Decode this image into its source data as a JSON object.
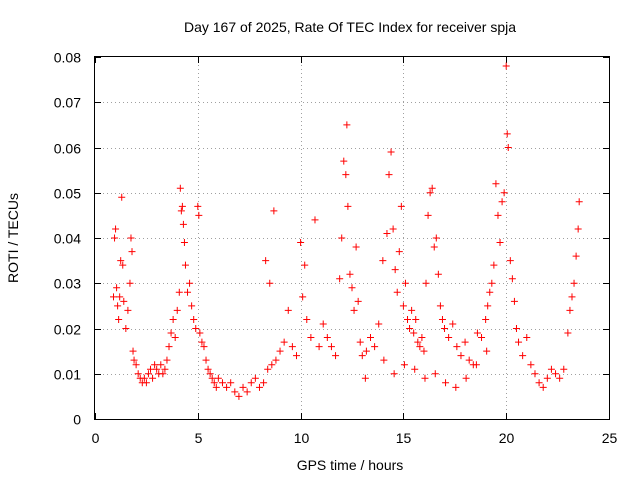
{
  "chart_data": {
    "type": "scatter",
    "title": "Day 167 of 2025, Rate Of TEC Index for receiver spja",
    "xlabel": "GPS time / hours",
    "ylabel": "ROTI / TECUs",
    "xlim": [
      0,
      25
    ],
    "ylim": [
      0,
      0.08
    ],
    "grid": true,
    "marker": "+",
    "color": "#ff0000",
    "x_ticks": [
      0,
      5,
      10,
      15,
      20,
      25
    ],
    "x_tick_labels": [
      "0",
      "5",
      "10",
      "15",
      "20",
      "25"
    ],
    "y_ticks": [
      0,
      0.01,
      0.02,
      0.03,
      0.04,
      0.05,
      0.06,
      0.07,
      0.08
    ],
    "y_tick_labels": [
      "0",
      "0.01",
      "0.02",
      "0.03",
      "0.04",
      "0.05",
      "0.06",
      "0.07",
      "0.08"
    ],
    "series": [
      {
        "name": "ROTI",
        "x": [
          0.9,
          0.95,
          1.0,
          1.05,
          1.1,
          1.15,
          1.2,
          1.25,
          1.3,
          1.35,
          1.4,
          1.5,
          1.6,
          1.7,
          1.75,
          1.8,
          1.85,
          1.9,
          2.0,
          2.1,
          2.2,
          2.3,
          2.4,
          2.5,
          2.6,
          2.7,
          2.8,
          2.9,
          3.0,
          3.1,
          3.2,
          3.3,
          3.4,
          3.5,
          3.6,
          3.7,
          3.8,
          3.9,
          4.0,
          4.1,
          4.15,
          4.2,
          4.25,
          4.3,
          4.35,
          4.4,
          4.5,
          4.6,
          4.7,
          4.8,
          4.9,
          5.0,
          5.05,
          5.1,
          5.2,
          5.3,
          5.4,
          5.5,
          5.6,
          5.7,
          5.8,
          5.9,
          6.0,
          6.2,
          6.4,
          6.6,
          6.8,
          7.0,
          7.2,
          7.4,
          7.6,
          7.8,
          8.0,
          8.2,
          8.3,
          8.4,
          8.5,
          8.6,
          8.7,
          8.8,
          9.0,
          9.2,
          9.4,
          9.6,
          9.8,
          10.0,
          10.1,
          10.2,
          10.3,
          10.5,
          10.7,
          10.9,
          11.1,
          11.3,
          11.5,
          11.7,
          11.9,
          12.0,
          12.1,
          12.2,
          12.25,
          12.3,
          12.4,
          12.5,
          12.6,
          12.7,
          12.8,
          12.9,
          13.0,
          13.2,
          13.4,
          13.6,
          13.8,
          14.0,
          14.2,
          14.3,
          14.4,
          14.5,
          14.6,
          14.7,
          14.8,
          14.9,
          15.0,
          15.1,
          15.2,
          15.3,
          15.4,
          15.5,
          15.6,
          15.7,
          15.8,
          15.9,
          16.0,
          16.1,
          16.2,
          16.3,
          16.4,
          16.5,
          16.6,
          16.7,
          16.8,
          16.9,
          17.0,
          17.2,
          17.4,
          17.6,
          17.8,
          18.0,
          18.2,
          18.4,
          18.6,
          18.8,
          19.0,
          19.1,
          19.2,
          19.3,
          19.4,
          19.5,
          19.6,
          19.7,
          19.8,
          19.9,
          20.0,
          20.05,
          20.1,
          20.2,
          20.3,
          20.4,
          20.5,
          20.6,
          20.8,
          21.0,
          21.2,
          21.4,
          21.6,
          21.8,
          22.0,
          22.2,
          22.4,
          22.6,
          22.8,
          23.0,
          23.1,
          23.2,
          23.3,
          23.4,
          23.5,
          23.55,
          14.55,
          15.05,
          13.15,
          15.55,
          16.05,
          16.55,
          17.05,
          17.55,
          18.05,
          18.55,
          19.05,
          14.05
        ],
        "y": [
          0.027,
          0.04,
          0.042,
          0.029,
          0.025,
          0.022,
          0.027,
          0.035,
          0.049,
          0.034,
          0.026,
          0.02,
          0.024,
          0.03,
          0.04,
          0.037,
          0.015,
          0.013,
          0.012,
          0.01,
          0.009,
          0.008,
          0.009,
          0.008,
          0.01,
          0.011,
          0.009,
          0.012,
          0.011,
          0.01,
          0.012,
          0.01,
          0.011,
          0.013,
          0.016,
          0.019,
          0.022,
          0.018,
          0.024,
          0.028,
          0.051,
          0.046,
          0.047,
          0.043,
          0.039,
          0.034,
          0.028,
          0.03,
          0.025,
          0.022,
          0.02,
          0.047,
          0.045,
          0.019,
          0.017,
          0.016,
          0.013,
          0.011,
          0.01,
          0.009,
          0.008,
          0.007,
          0.009,
          0.008,
          0.007,
          0.008,
          0.006,
          0.005,
          0.007,
          0.006,
          0.008,
          0.009,
          0.007,
          0.008,
          0.035,
          0.011,
          0.03,
          0.012,
          0.046,
          0.013,
          0.015,
          0.017,
          0.024,
          0.016,
          0.014,
          0.039,
          0.027,
          0.034,
          0.022,
          0.018,
          0.044,
          0.016,
          0.021,
          0.018,
          0.016,
          0.014,
          0.031,
          0.04,
          0.057,
          0.054,
          0.065,
          0.047,
          0.032,
          0.029,
          0.024,
          0.038,
          0.026,
          0.017,
          0.014,
          0.015,
          0.018,
          0.016,
          0.021,
          0.035,
          0.041,
          0.054,
          0.059,
          0.042,
          0.033,
          0.028,
          0.037,
          0.047,
          0.025,
          0.03,
          0.022,
          0.02,
          0.024,
          0.019,
          0.022,
          0.017,
          0.016,
          0.018,
          0.015,
          0.03,
          0.045,
          0.05,
          0.051,
          0.038,
          0.04,
          0.032,
          0.025,
          0.022,
          0.02,
          0.018,
          0.021,
          0.016,
          0.014,
          0.017,
          0.013,
          0.012,
          0.019,
          0.018,
          0.022,
          0.025,
          0.028,
          0.03,
          0.034,
          0.052,
          0.045,
          0.039,
          0.048,
          0.05,
          0.078,
          0.063,
          0.06,
          0.035,
          0.031,
          0.026,
          0.02,
          0.017,
          0.014,
          0.018,
          0.012,
          0.01,
          0.008,
          0.007,
          0.009,
          0.011,
          0.01,
          0.009,
          0.011,
          0.019,
          0.024,
          0.027,
          0.03,
          0.036,
          0.042,
          0.048,
          0.01,
          0.012,
          0.009,
          0.011,
          0.009,
          0.01,
          0.008,
          0.007,
          0.009,
          0.012,
          0.015,
          0.013
        ]
      }
    ]
  }
}
